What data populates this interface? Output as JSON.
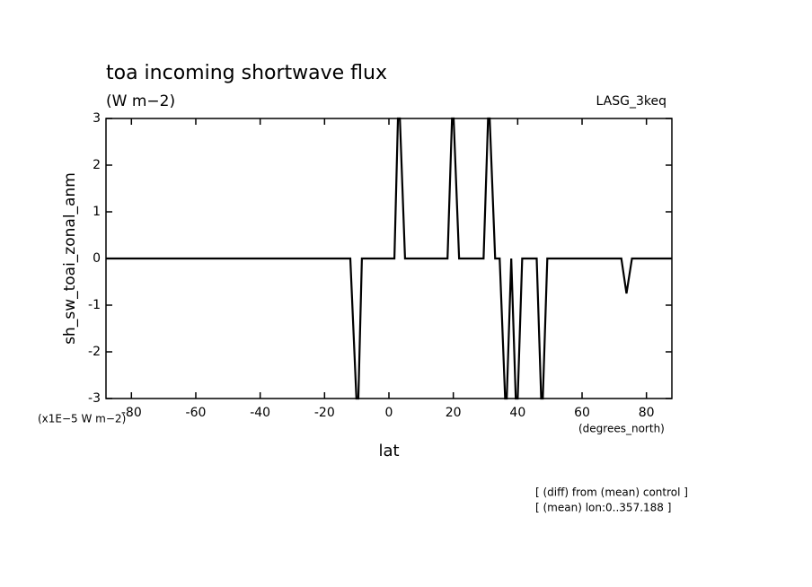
{
  "chart_data": {
    "type": "line",
    "title": "toa incoming shortwave flux",
    "subtitle": "(W m−2)",
    "model_label": "LASG_3keq",
    "x_label": "lat",
    "x_unit": "(degrees_north)",
    "y_label": "sh_sw_toai_zonal_anm",
    "y_unit": "(x1E−5 W m−2)",
    "notes": [
      "[ (diff) from (mean) control ]",
      "[ (mean) lon:0..357.188 ]"
    ],
    "xlim": [
      -87.9,
      87.9
    ],
    "ylim": [
      -3,
      3
    ],
    "xticks": [
      -80,
      -60,
      -40,
      -20,
      0,
      20,
      40,
      60,
      80
    ],
    "yticks": [
      -3,
      -2,
      -1,
      0,
      1,
      2,
      3
    ],
    "x": [
      -87.9,
      -12.0,
      -10.1,
      -9.5,
      -8.4,
      1.7,
      2.8,
      3.4,
      5.0,
      18.2,
      19.6,
      20.1,
      21.8,
      29.4,
      30.8,
      31.3,
      33.0,
      34.4,
      36.1,
      36.6,
      38.0,
      39.4,
      40.0,
      41.4,
      45.9,
      47.3,
      47.8,
      49.2,
      72.2,
      73.8,
      75.5,
      87.9
    ],
    "series": [
      {
        "name": "sh_sw_toai_zonal_anm",
        "color": "#000000",
        "values": [
          0,
          0,
          -3,
          -3,
          0,
          0,
          3,
          3,
          0,
          0,
          3,
          3,
          0,
          0,
          3,
          3,
          0,
          0,
          -3,
          -3,
          0,
          -3,
          -3,
          0,
          0,
          -3,
          -3,
          0,
          0,
          -0.75,
          0,
          0
        ]
      }
    ]
  }
}
